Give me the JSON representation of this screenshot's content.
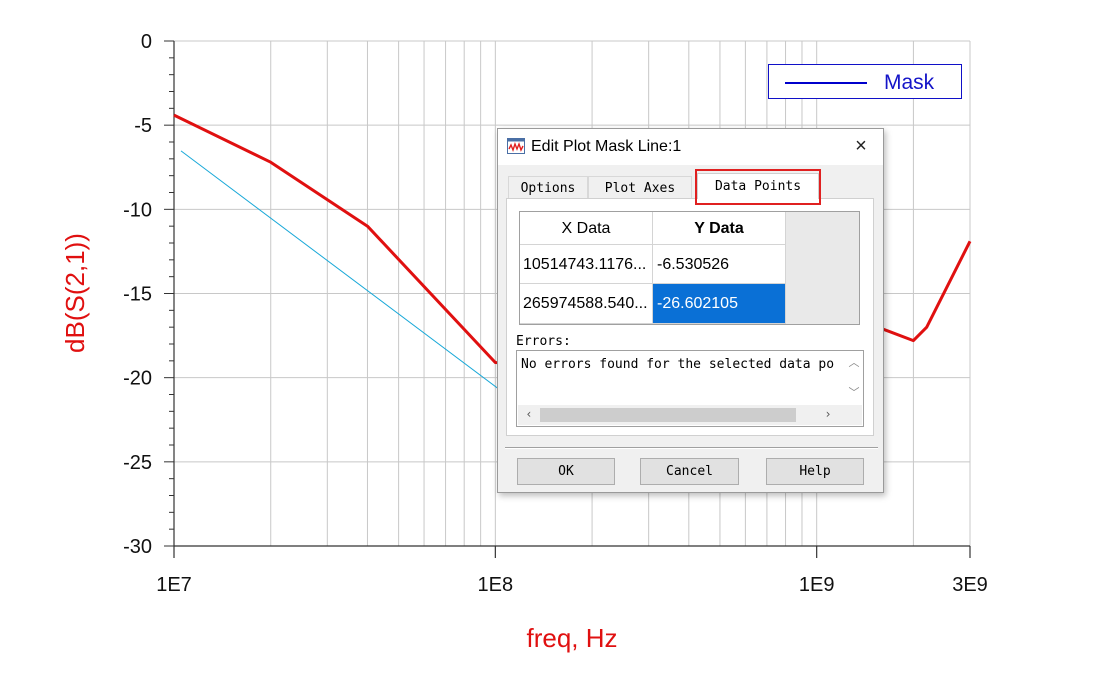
{
  "chart_data": {
    "type": "line",
    "xscale": "log",
    "xlim": [
      10000000,
      3000000000
    ],
    "ylim": [
      -30,
      0
    ],
    "xlabel": "freq, Hz",
    "ylabel": "dB(S(2,1))",
    "x_ticks": [
      "1E7",
      "1E8",
      "1E9",
      "3E9"
    ],
    "y_ticks": [
      "0",
      "-5",
      "-10",
      "-15",
      "-20",
      "-25",
      "-30"
    ],
    "grid": true,
    "series": [
      {
        "name": "dB(S(2,1))",
        "color": "#e01010",
        "x": [
          10000000,
          20000000,
          40000000,
          100000000,
          200000000,
          400000000,
          1000000000,
          1500000000,
          2000000000,
          2200000000,
          3000000000
        ],
        "y": [
          -4.4,
          -7.2,
          -11.0,
          -19.1,
          -19.4,
          -19.0,
          -17.8,
          -16.9,
          -17.8,
          -17.0,
          -11.9
        ]
      },
      {
        "name": "Mask",
        "color": "#18a8d8",
        "x": [
          10514743.1176,
          265974588.54
        ],
        "y": [
          -6.530526,
          -26.602105
        ]
      }
    ],
    "legend": {
      "position": "top-right",
      "entries": [
        "Mask"
      ],
      "color": "#0000cc"
    }
  },
  "dialog": {
    "title": "Edit Plot Mask Line:1",
    "close_icon": "×",
    "tabs": [
      "Options",
      "Plot Axes",
      "Data Points"
    ],
    "active_tab": "Data Points",
    "columns": [
      "X Data",
      "Y Data"
    ],
    "rows": [
      [
        "10514743.1176...",
        "-6.530526"
      ],
      [
        "265974588.540...",
        "-26.602105"
      ]
    ],
    "errors_label": "Errors:",
    "errors_text": "No errors found for the selected data po",
    "buttons": {
      "ok": "OK",
      "cancel": "Cancel",
      "help": "Help"
    }
  }
}
